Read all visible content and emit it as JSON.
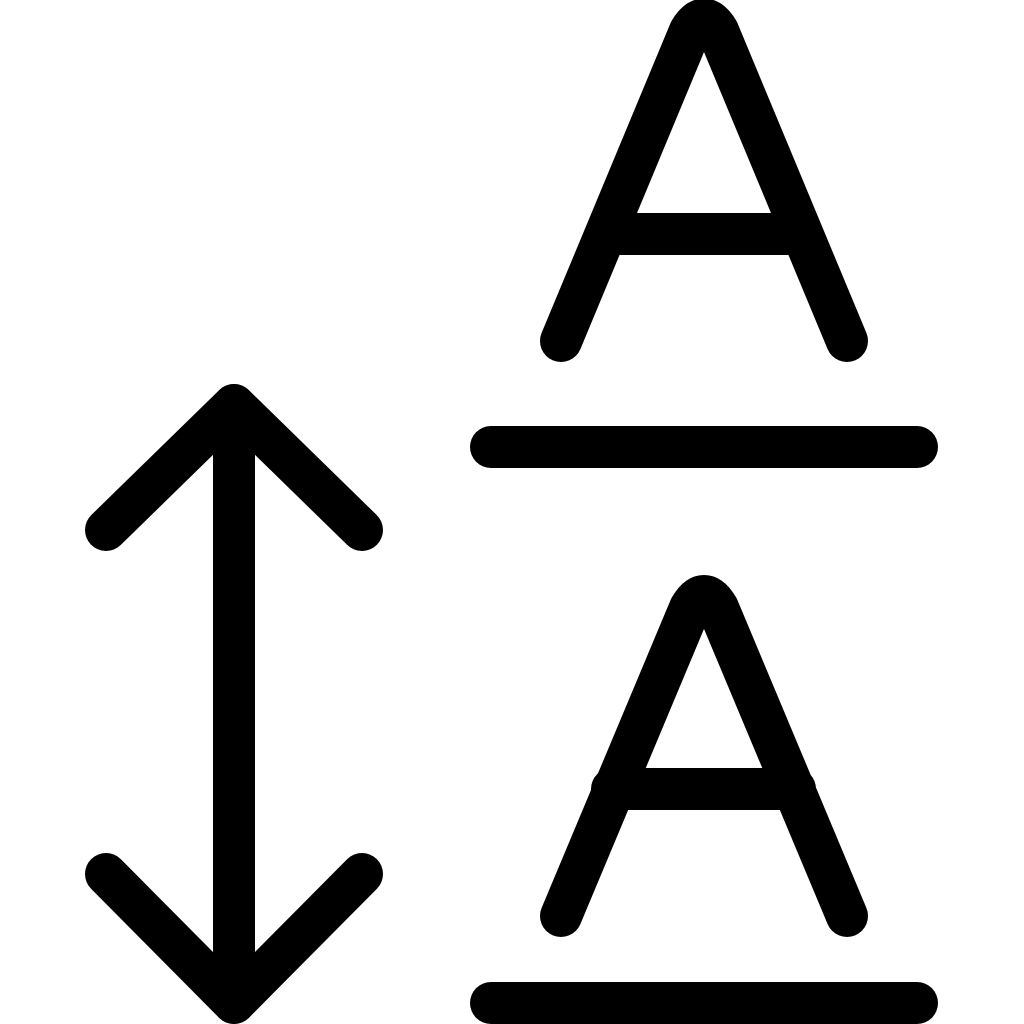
{
  "icon": {
    "semantic_name": "line-spacing-icon",
    "letter_top": "A",
    "letter_bottom": "A",
    "stroke_color": "#000000",
    "background_color": "#ffffff"
  }
}
